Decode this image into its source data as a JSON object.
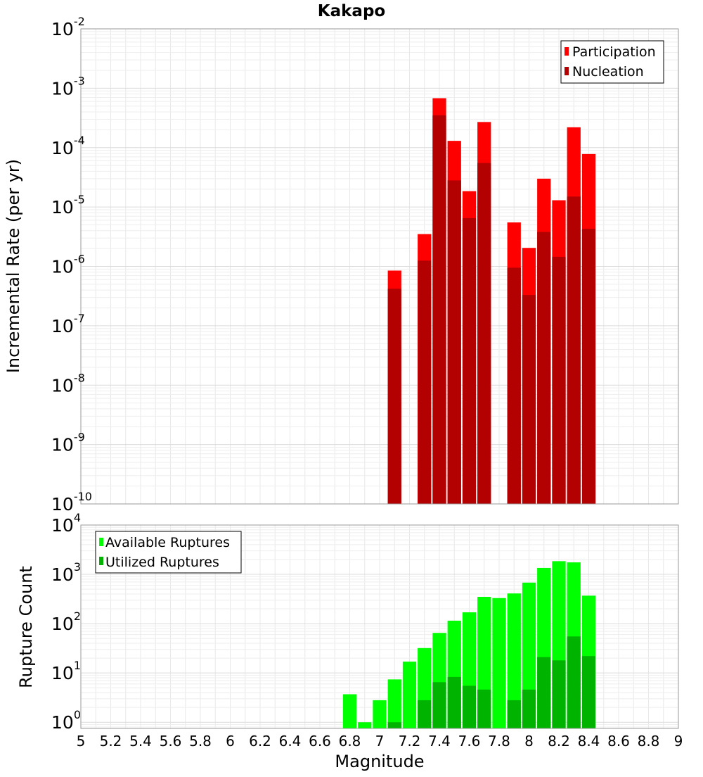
{
  "chart_data": [
    {
      "type": "bar",
      "title": "Kakapo",
      "ylabel": "Incremental Rate (per yr)",
      "yscale": "log",
      "ylim": [
        1e-10,
        0.01
      ],
      "y_tick_labels": [
        {
          "base": "10",
          "exp": "-10"
        },
        {
          "base": "10",
          "exp": "-9"
        },
        {
          "base": "10",
          "exp": "-8"
        },
        {
          "base": "10",
          "exp": "-7"
        },
        {
          "base": "10",
          "exp": "-6"
        },
        {
          "base": "10",
          "exp": "-5"
        },
        {
          "base": "10",
          "exp": "-4"
        },
        {
          "base": "10",
          "exp": "-3"
        },
        {
          "base": "10",
          "exp": "-2"
        }
      ],
      "grid": true,
      "legend_position": "top-right",
      "x": [
        7.1,
        7.3,
        7.4,
        7.5,
        7.6,
        7.7,
        7.9,
        8.0,
        8.1,
        8.2,
        8.3,
        8.4
      ],
      "series": [
        {
          "name": "Participation",
          "color": "#ff0000",
          "values": [
            8.5e-07,
            3.5e-06,
            0.00068,
            0.00013,
            1.85e-05,
            0.00027,
            5.5e-06,
            2.05e-06,
            3e-05,
            1.3e-05,
            0.00022,
            7.8e-05
          ]
        },
        {
          "name": "Nucleation",
          "color": "#b30000",
          "values": [
            4.2e-07,
            1.25e-06,
            0.00035,
            2.8e-05,
            6.5e-06,
            5.5e-05,
            9.5e-07,
            3.3e-07,
            3.8e-06,
            1.45e-06,
            1.5e-05,
            4.3e-06
          ]
        }
      ]
    },
    {
      "type": "bar",
      "ylabel": "Rupture Count",
      "xlabel": "Magnitude",
      "yscale": "log",
      "ylim": [
        0.75,
        10000
      ],
      "xlim": [
        5,
        9
      ],
      "x_tick_labels": [
        "5",
        "5.2",
        "5.4",
        "5.6",
        "5.8",
        "6",
        "6.2",
        "6.4",
        "6.6",
        "6.8",
        "7",
        "7.2",
        "7.4",
        "7.6",
        "7.8",
        "8",
        "8.2",
        "8.4",
        "8.6",
        "8.8",
        "9"
      ],
      "y_tick_labels": [
        {
          "base": "10",
          "exp": "0"
        },
        {
          "base": "10",
          "exp": "1"
        },
        {
          "base": "10",
          "exp": "2"
        },
        {
          "base": "10",
          "exp": "3"
        },
        {
          "base": "10",
          "exp": "4"
        }
      ],
      "grid": true,
      "legend_position": "top-left",
      "x": [
        6.8,
        6.9,
        7.0,
        7.1,
        7.2,
        7.3,
        7.4,
        7.5,
        7.6,
        7.7,
        7.8,
        7.9,
        8.0,
        8.1,
        8.2,
        8.3,
        8.4
      ],
      "series": [
        {
          "name": "Available Ruptures",
          "color": "#00ff00",
          "values": [
            3.7,
            1,
            2.8,
            7.4,
            17,
            32,
            65,
            115,
            170,
            350,
            330,
            410,
            680,
            1350,
            1850,
            1750,
            370
          ]
        },
        {
          "name": "Utilized Ruptures",
          "color": "#00b300",
          "values": [
            0,
            0,
            0,
            1,
            0,
            2.8,
            6.5,
            8.3,
            5.5,
            4.6,
            0,
            2.8,
            4.6,
            21,
            18,
            55,
            22
          ]
        }
      ]
    }
  ]
}
